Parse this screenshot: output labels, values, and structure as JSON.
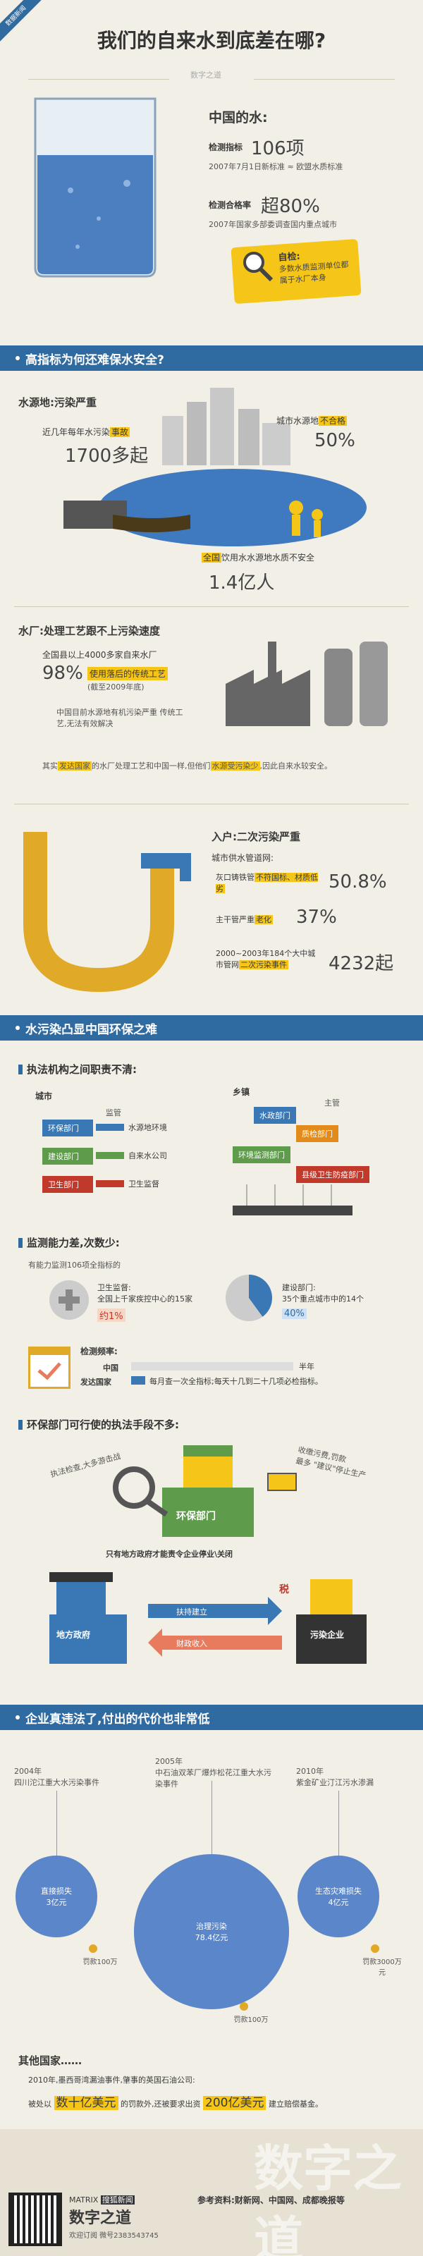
{
  "header": {
    "badge": "数据新闻",
    "title": "我们的自来水到底差在哪?",
    "logo": "数字之道"
  },
  "intro": {
    "heading": "中国的水:",
    "indicator_label": "检测指标",
    "indicator_value": "106项",
    "indicator_note": "2007年7月1日新标准 ≈ 欧盟水质标准",
    "pass_label": "检测合格率",
    "pass_value": "超80%",
    "pass_note": "2007年国家多部委调查国内重点城市",
    "self_check_label": "自检:",
    "self_check_text": "多数水质监测单位都属于水厂本身"
  },
  "section1": {
    "title": "高指标为何还难保水安全?",
    "source": {
      "title": "水源地:污染严重",
      "left_note_a": "近几年每年水污染",
      "left_note_hl": "事故",
      "left_value": "1700多起",
      "right_note_a": "城市水源地",
      "right_note_hl": "不合格",
      "right_value": "50%",
      "bottom_hl": "全国",
      "bottom_note": "饮用水水源地水质不安全",
      "bottom_value": "1.4亿人"
    },
    "plant": {
      "title": "水厂:处理工艺跟不上污染速度",
      "note": "全国县以上4000多家自来水厂",
      "value": "98%",
      "value_hl": "使用落后的传统工艺",
      "value_note": "(截至2009年底)",
      "bullet1": "中国目前水源地有机污染严重 传统工艺,无法有效解决",
      "bullet2_a": "其实",
      "bullet2_hl": "发达国家",
      "bullet2_b": "的水厂处理工艺和中国一样,但他们",
      "bullet2_hl2": "水源受污染少",
      "bullet2_c": ",因此自来水较安全。"
    },
    "pipe": {
      "title": "入户:二次污染严重",
      "intro": "城市供水管道网:",
      "row1_text": "灰口铸铁管",
      "row1_hl": "不符国标、材质低劣",
      "row1_value": "50.8%",
      "row2_text": "主干管严重",
      "row2_hl": "老化",
      "row2_value": "37%",
      "row3_text": "2000~2003年184个大中城市管网",
      "row3_hl": "二次污染事件",
      "row3_value": "4232起"
    }
  },
  "section2": {
    "title": "水污染凸显中国环保之难",
    "duties": {
      "title": "执法机构之间职责不清:",
      "city_label": "城市",
      "city_supervise": "监管",
      "city_items": [
        "环保部门",
        "建设部门",
        "卫生部门"
      ],
      "city_targets": [
        "水源地环境",
        "自来水公司",
        "卫生监督"
      ],
      "town_label": "乡镇",
      "town_manage": "主管",
      "town_items": [
        "水政部门",
        "质检部门",
        "环境监测部门",
        "县级卫生防疫部门"
      ]
    },
    "monitor": {
      "title": "监测能力差,次数少:",
      "intro": "有能力监测106项全指标的",
      "health_a": "卫生监督:",
      "health_b": "全国上千家疾控中心的15家",
      "health_value": "约1%",
      "build_a": "建设部门:",
      "build_b": "35个重点城市中的14个",
      "build_value": "40%",
      "freq_title": "检测频率:",
      "cn_label": "中国",
      "cn_unit": "半年",
      "dev_label": "发达国家",
      "dev_text": "每月查一次全指标;每天十几到二十几项必检指标。"
    },
    "power": {
      "title": "环保部门可行使的执法手段不多:",
      "left_bubble": "执法检查,大多游击战",
      "right_bubble_a": "收缴污费,罚款",
      "right_bubble_b": "最多",
      "right_bubble_c": "\"建议\"停止生产",
      "person_label": "环保部门",
      "note": "只有地方政府才能责令企业停业\\关闭",
      "local_gov": "地方政府",
      "polluter": "污染企业",
      "arrow1": "扶持建立",
      "arrow2": "财政收入",
      "tax": "税"
    }
  },
  "section3": {
    "title": "企业真违法了,付出的代价也非常低",
    "cases": [
      {
        "year": "2004年",
        "name": "四川沱江重大水污染事件",
        "label": "直接损失",
        "loss": "3亿元",
        "fine": "罚款100万"
      },
      {
        "year": "2005年",
        "name": "中石油双苯厂爆炸松花江重大水污染事件",
        "label": "治理污染",
        "loss": "78.4亿元",
        "fine": "罚款100万"
      },
      {
        "year": "2010年",
        "name": "紫金矿业汀江污水渗漏",
        "label": "生态灾难损失",
        "loss": "4亿元",
        "fine": "罚款3000万元"
      }
    ],
    "other_title": "其他国家……",
    "other_a": "2010年,墨西哥湾漏油事件,肇事的英国石油公司:",
    "other_b": "被处以",
    "other_hl1": "数十亿美元",
    "other_c": "的罚款外,还被要求出资",
    "other_hl2": "200亿美元",
    "other_d": "建立赔偿基金。"
  },
  "footer": {
    "brand": "MATRIX",
    "brand_hl": "搜狐新闻",
    "brand_cn": "数字之道",
    "follow": "欢迎订阅 微号2383543745",
    "ref_label": "参考资料:",
    "ref_sources": "财新网、中国网、成都晚报等",
    "watermark": "数字之道"
  },
  "colors": {
    "blue": "#2f6aa0",
    "yellow": "#f5c518",
    "bg": "#f2efe6",
    "green": "#5e9b4b",
    "red": "#c0392b"
  }
}
